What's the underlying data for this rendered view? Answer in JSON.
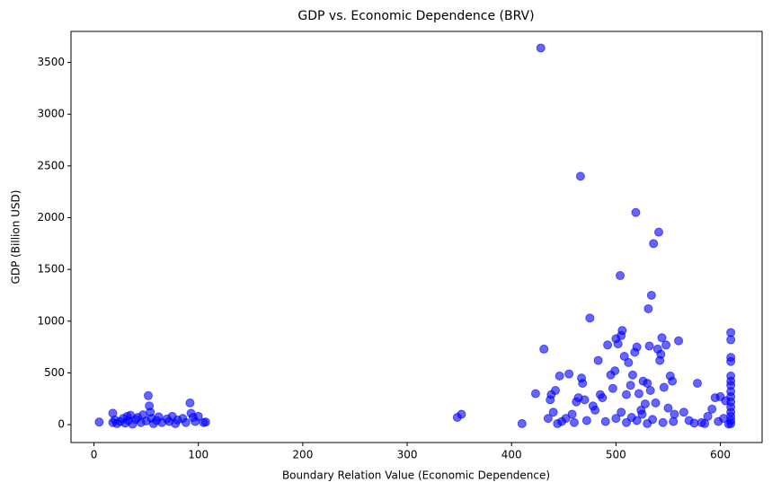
{
  "chart_data": {
    "type": "scatter",
    "title": "GDP vs. Economic Dependence (BRV)",
    "x_label": "Boundary Relation Value (Economic Dependence)",
    "y_label": "GDP (Billion USD)",
    "color": "#0000ff",
    "xlim": [
      -22,
      640
    ],
    "ylim": [
      -173,
      3800
    ],
    "xticks": [
      0,
      100,
      200,
      300,
      400,
      500,
      600
    ],
    "yticks": [
      0,
      500,
      1000,
      1500,
      2000,
      2500,
      3000,
      3500
    ],
    "x": [
      5,
      18,
      18,
      20,
      22,
      25,
      28,
      30,
      32,
      33,
      35,
      37,
      40,
      42,
      45,
      47,
      50,
      52,
      53,
      54,
      55,
      57,
      60,
      62,
      65,
      70,
      72,
      75,
      78,
      80,
      85,
      88,
      92,
      93,
      95,
      97,
      100,
      105,
      107,
      348,
      352,
      410,
      423,
      428,
      431,
      435,
      437,
      438,
      440,
      442,
      444,
      446,
      448,
      452,
      455,
      458,
      460,
      462,
      464,
      466,
      467,
      468,
      470,
      472,
      475,
      478,
      480,
      483,
      485,
      487,
      490,
      492,
      495,
      497,
      499,
      500,
      502,
      504,
      505,
      506,
      508,
      510,
      512,
      514,
      516,
      518,
      519,
      520,
      522,
      524,
      526,
      528,
      530,
      531,
      532,
      533,
      534,
      536,
      538,
      540,
      541,
      542,
      543,
      544,
      546,
      548,
      550,
      552,
      554,
      556,
      560,
      565,
      570,
      578,
      582,
      588,
      592,
      595,
      600,
      605,
      610,
      610,
      610,
      610,
      610,
      610,
      610,
      610,
      610,
      610,
      610,
      610,
      610,
      610,
      610,
      608,
      500,
      505,
      510,
      515,
      520,
      525,
      530,
      535,
      545,
      555,
      575,
      585,
      598,
      603
    ],
    "values": [
      25,
      110,
      20,
      45,
      10,
      30,
      60,
      15,
      80,
      40,
      90,
      5,
      50,
      70,
      20,
      95,
      35,
      280,
      180,
      120,
      60,
      10,
      40,
      75,
      20,
      55,
      30,
      80,
      10,
      45,
      60,
      20,
      210,
      110,
      70,
      30,
      80,
      20,
      25,
      70,
      100,
      10,
      300,
      3640,
      730,
      60,
      240,
      290,
      120,
      330,
      10,
      470,
      30,
      60,
      490,
      100,
      20,
      220,
      260,
      2400,
      450,
      400,
      240,
      40,
      1030,
      180,
      140,
      620,
      290,
      260,
      30,
      770,
      480,
      350,
      520,
      830,
      780,
      1440,
      860,
      910,
      660,
      290,
      600,
      380,
      480,
      700,
      2050,
      750,
      300,
      140,
      420,
      200,
      400,
      1120,
      760,
      330,
      1250,
      1750,
      210,
      730,
      1860,
      620,
      680,
      840,
      360,
      770,
      160,
      470,
      420,
      100,
      810,
      120,
      40,
      400,
      20,
      80,
      150,
      260,
      270,
      230,
      890,
      820,
      650,
      610,
      470,
      420,
      380,
      320,
      270,
      220,
      170,
      120,
      80,
      40,
      10,
      5,
      60,
      120,
      20,
      70,
      40,
      100,
      10,
      50,
      20,
      30,
      15,
      10,
      30,
      60
    ]
  }
}
